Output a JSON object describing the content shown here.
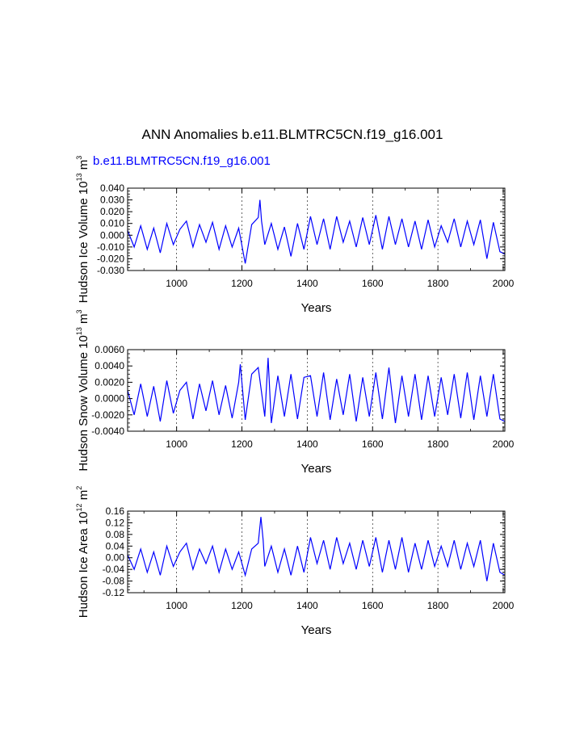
{
  "title": "ANN Anomalies b.e11.BLMTRC5CN.f19_g16.001",
  "colors": {
    "series": "#0000ff",
    "text": "#000000",
    "grid": "#000000"
  },
  "chart_data": [
    {
      "type": "line",
      "subtitle": "b.e11.BLMTRC5CN.f19_g16.001",
      "xlabel": "Years",
      "ylabel": {
        "text": "Hudson Ice Volume 10",
        "exp": "13",
        "unit": " m",
        "unit_exp": "3"
      },
      "xlim": [
        850,
        2005
      ],
      "ylim": [
        -0.03,
        0.04
      ],
      "x_ticks": [
        "1000",
        "1200",
        "1400",
        "1600",
        "1800",
        "2000"
      ],
      "y_ticks": [
        "0.040",
        "0.030",
        "0.020",
        "0.010",
        "0.000",
        "-0.010",
        "-0.020",
        "-0.030"
      ],
      "grid": "vertical dashed",
      "series": [
        {
          "name": "b.e11.BLMTRC5CN.f19_g16.001",
          "x": [
            850,
            870,
            890,
            910,
            930,
            950,
            970,
            990,
            1010,
            1030,
            1050,
            1070,
            1090,
            1110,
            1130,
            1150,
            1170,
            1190,
            1210,
            1230,
            1250,
            1255,
            1260,
            1270,
            1290,
            1310,
            1330,
            1350,
            1370,
            1390,
            1410,
            1430,
            1450,
            1470,
            1490,
            1510,
            1530,
            1550,
            1570,
            1590,
            1610,
            1630,
            1650,
            1670,
            1690,
            1710,
            1730,
            1750,
            1770,
            1790,
            1810,
            1830,
            1850,
            1870,
            1890,
            1910,
            1930,
            1950,
            1970,
            1990,
            2005
          ],
          "y": [
            0.004,
            -0.01,
            0.008,
            -0.012,
            0.006,
            -0.015,
            0.01,
            -0.008,
            0.005,
            0.012,
            -0.01,
            0.009,
            -0.006,
            0.011,
            -0.012,
            0.008,
            -0.01,
            0.006,
            -0.024,
            0.009,
            0.015,
            0.03,
            0.012,
            -0.008,
            0.01,
            -0.012,
            0.007,
            -0.018,
            0.01,
            -0.012,
            0.016,
            -0.008,
            0.014,
            -0.012,
            0.016,
            -0.006,
            0.012,
            -0.01,
            0.015,
            -0.008,
            0.017,
            -0.012,
            0.016,
            -0.008,
            0.014,
            -0.01,
            0.012,
            -0.012,
            0.013,
            -0.01,
            0.008,
            -0.006,
            0.014,
            -0.01,
            0.012,
            -0.008,
            0.013,
            -0.02,
            0.011,
            -0.014,
            -0.016
          ]
        }
      ]
    },
    {
      "type": "line",
      "xlabel": "Years",
      "ylabel": {
        "text": "Hudson Snow Volume 10",
        "exp": "13",
        "unit": " m",
        "unit_exp": "3"
      },
      "xlim": [
        850,
        2005
      ],
      "ylim": [
        -0.004,
        0.006
      ],
      "x_ticks": [
        "1000",
        "1200",
        "1400",
        "1600",
        "1800",
        "2000"
      ],
      "y_ticks": [
        "0.0060",
        "0.0040",
        "0.0020",
        "0.0000",
        "-0.0020",
        "-0.0040"
      ],
      "grid": "vertical dashed",
      "series": [
        {
          "x": [
            850,
            870,
            890,
            910,
            930,
            950,
            970,
            990,
            1010,
            1030,
            1050,
            1070,
            1090,
            1110,
            1130,
            1150,
            1170,
            1190,
            1195,
            1210,
            1230,
            1250,
            1270,
            1280,
            1290,
            1310,
            1330,
            1350,
            1370,
            1390,
            1410,
            1430,
            1450,
            1470,
            1490,
            1510,
            1530,
            1550,
            1570,
            1590,
            1610,
            1630,
            1650,
            1670,
            1690,
            1710,
            1730,
            1750,
            1770,
            1790,
            1810,
            1830,
            1850,
            1870,
            1890,
            1910,
            1930,
            1950,
            1970,
            1990,
            2005
          ],
          "y": [
            0.001,
            -0.002,
            0.0018,
            -0.0022,
            0.0015,
            -0.0028,
            0.0022,
            -0.0018,
            0.001,
            0.002,
            -0.0025,
            0.0018,
            -0.0015,
            0.0022,
            -0.002,
            0.0016,
            -0.0024,
            0.002,
            0.0042,
            -0.0026,
            0.003,
            0.0038,
            -0.0022,
            0.005,
            -0.003,
            0.0028,
            -0.0022,
            0.003,
            -0.0025,
            0.0026,
            0.0028,
            -0.0022,
            0.0032,
            -0.0026,
            0.0024,
            -0.002,
            0.003,
            -0.0028,
            0.0026,
            -0.0022,
            0.0032,
            -0.0025,
            0.0038,
            -0.003,
            0.0028,
            -0.0022,
            0.003,
            -0.0026,
            0.0028,
            -0.0022,
            0.0026,
            -0.002,
            0.003,
            -0.0024,
            0.0032,
            -0.0026,
            0.0028,
            -0.0022,
            0.003,
            -0.0025,
            -0.0028
          ]
        }
      ]
    },
    {
      "type": "line",
      "xlabel": "Years",
      "ylabel": {
        "text": "Hudson Ice Area 10",
        "exp": "12",
        "unit": " m",
        "unit_exp": "2"
      },
      "xlim": [
        850,
        2005
      ],
      "ylim": [
        -0.12,
        0.16
      ],
      "x_ticks": [
        "1000",
        "1200",
        "1400",
        "1600",
        "1800",
        "2000"
      ],
      "y_ticks": [
        "0.16",
        "0.12",
        "0.08",
        "0.04",
        "0.00",
        "-0.04",
        "-0.08",
        "-0.12"
      ],
      "grid": "vertical dashed",
      "series": [
        {
          "x": [
            850,
            870,
            890,
            910,
            930,
            950,
            970,
            990,
            1010,
            1030,
            1050,
            1070,
            1090,
            1110,
            1130,
            1150,
            1170,
            1190,
            1210,
            1230,
            1250,
            1258,
            1265,
            1270,
            1290,
            1310,
            1330,
            1350,
            1370,
            1390,
            1410,
            1430,
            1450,
            1470,
            1490,
            1510,
            1530,
            1550,
            1570,
            1590,
            1610,
            1630,
            1650,
            1670,
            1690,
            1710,
            1730,
            1750,
            1770,
            1790,
            1810,
            1830,
            1850,
            1870,
            1890,
            1910,
            1930,
            1950,
            1970,
            1990,
            2005
          ],
          "y": [
            0.01,
            -0.04,
            0.03,
            -0.05,
            0.02,
            -0.06,
            0.04,
            -0.03,
            0.02,
            0.05,
            -0.04,
            0.03,
            -0.02,
            0.04,
            -0.05,
            0.03,
            -0.04,
            0.02,
            -0.06,
            0.03,
            0.05,
            0.14,
            0.06,
            -0.03,
            0.04,
            -0.05,
            0.03,
            -0.06,
            0.04,
            -0.05,
            0.07,
            -0.02,
            0.06,
            -0.04,
            0.07,
            -0.02,
            0.05,
            -0.04,
            0.06,
            -0.03,
            0.07,
            -0.05,
            0.06,
            -0.04,
            0.07,
            -0.05,
            0.05,
            -0.04,
            0.06,
            -0.03,
            0.04,
            -0.03,
            0.06,
            -0.04,
            0.05,
            -0.03,
            0.06,
            -0.08,
            0.05,
            -0.05,
            -0.06
          ]
        }
      ]
    }
  ]
}
